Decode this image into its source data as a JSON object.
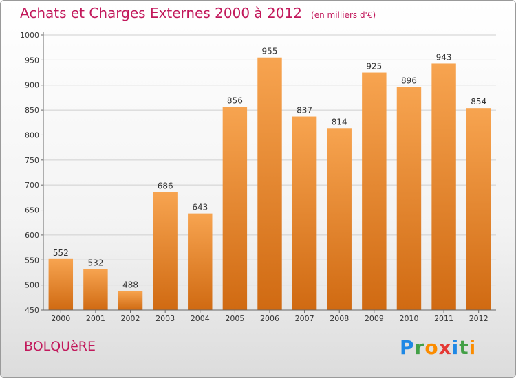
{
  "title": "Achats et Charges Externes 2000 à 2012",
  "subtitle": "(en milliers d'€)",
  "commune": "BOLQUèRE",
  "logo": {
    "letters": [
      "P",
      "r",
      "o",
      "x",
      "i",
      "t",
      "i"
    ],
    "colors": [
      "#1e88e5",
      "#43a047",
      "#fb8c00",
      "#e53935",
      "#1e88e5",
      "#43a047",
      "#fb8c00"
    ]
  },
  "colors": {
    "bar_top": "#f7a450",
    "bar_bottom": "#d06a12",
    "accent": "#c2185b"
  },
  "chart_data": {
    "type": "bar",
    "title": "Achats et Charges Externes 2000 à 2012",
    "subtitle": "(en milliers d'€)",
    "categories": [
      "2000",
      "2001",
      "2002",
      "2003",
      "2004",
      "2005",
      "2006",
      "2007",
      "2008",
      "2009",
      "2010",
      "2011",
      "2012"
    ],
    "values": [
      552,
      532,
      488,
      686,
      643,
      856,
      955,
      837,
      814,
      925,
      896,
      943,
      854
    ],
    "ylim": [
      450,
      1000
    ],
    "yticks": [
      450,
      500,
      550,
      600,
      650,
      700,
      750,
      800,
      850,
      900,
      950,
      1000
    ],
    "grid": true,
    "legend": "none"
  }
}
